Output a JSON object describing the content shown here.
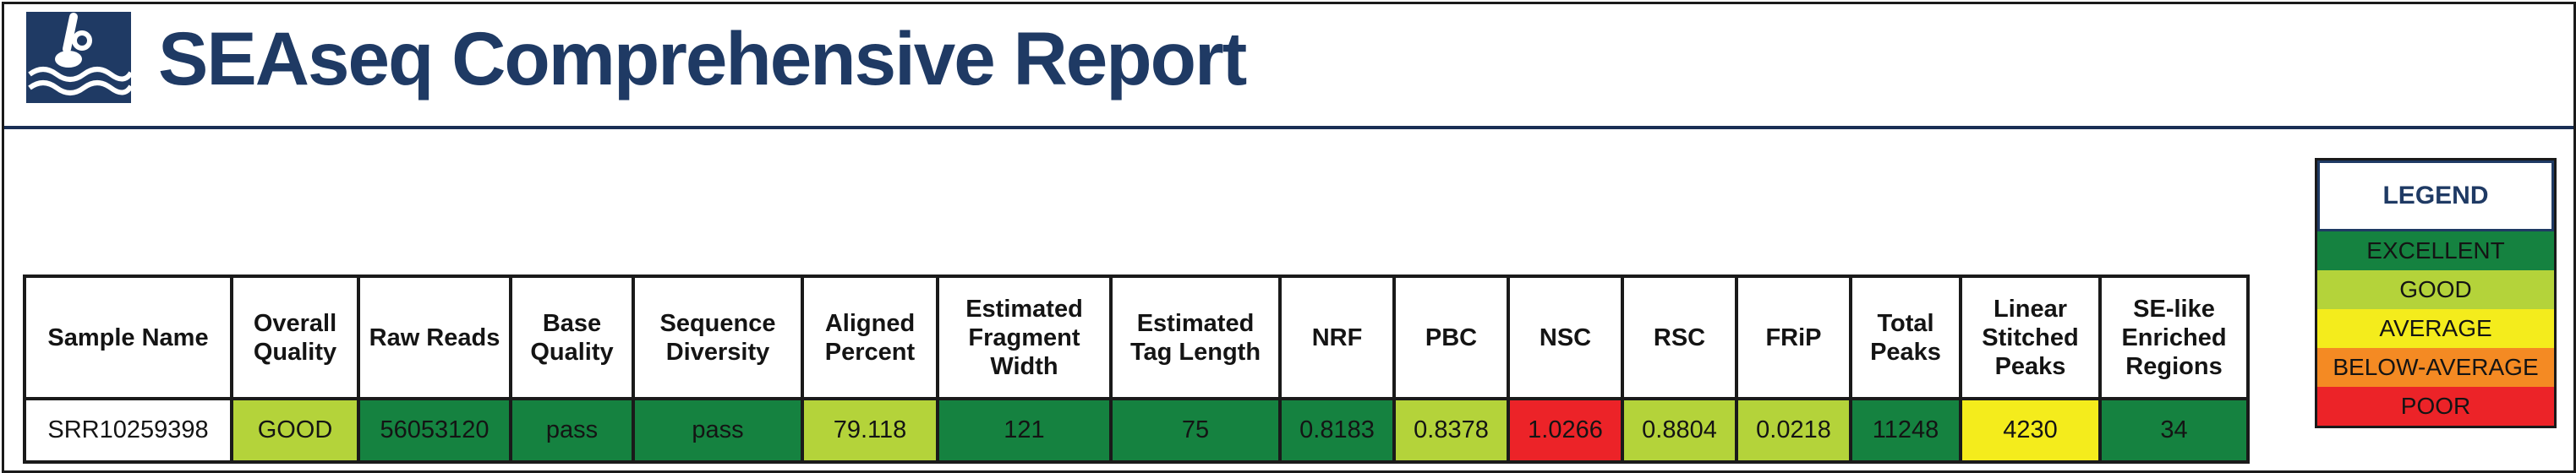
{
  "header": {
    "title": "SEAseq Comprehensive Report",
    "logo_icon": "seaseq-logo-icon",
    "colors": {
      "brand": "#1f3a64"
    }
  },
  "quality_colors": {
    "EXCELLENT": "#158240",
    "GOOD": "#b4d33a",
    "AVERAGE": "#f4ec1c",
    "BELOW-AVERAGE": "#f48a23",
    "POOR": "#ec2328"
  },
  "table": {
    "columns": [
      "Sample Name",
      "Overall Quality",
      "Raw Reads",
      "Base Quality",
      "Sequence Diversity",
      "Aligned Percent",
      "Estimated Fragment Width",
      "Estimated Tag Length",
      "NRF",
      "PBC",
      "NSC",
      "RSC",
      "FRiP",
      "Total Peaks",
      "Linear Stitched Peaks",
      "SE-like Enriched Regions"
    ],
    "row": {
      "sample_name": "SRR10259398",
      "overall_quality": "GOOD",
      "raw_reads": "56053120",
      "base_quality": "pass",
      "sequence_diversity": "pass",
      "aligned_percent": "79.118",
      "fragment_width": "121",
      "tag_length": "75",
      "nrf": "0.8183",
      "pbc": "0.8378",
      "nsc": "1.0266",
      "rsc": "0.8804",
      "frip": "0.0218",
      "total_peaks": "11248",
      "linear_stitched_peaks": "4230",
      "se_like_regions": "34"
    },
    "row_ratings": {
      "overall_quality": "GOOD",
      "raw_reads": "EXCELLENT",
      "base_quality": "EXCELLENT",
      "sequence_diversity": "EXCELLENT",
      "aligned_percent": "GOOD",
      "fragment_width": "EXCELLENT",
      "tag_length": "EXCELLENT",
      "nrf": "EXCELLENT",
      "pbc": "GOOD",
      "nsc": "POOR",
      "rsc": "GOOD",
      "frip": "GOOD",
      "total_peaks": "EXCELLENT",
      "linear_stitched_peaks": "AVERAGE",
      "se_like_regions": "EXCELLENT"
    }
  },
  "legend": {
    "title": "LEGEND",
    "items": [
      "EXCELLENT",
      "GOOD",
      "AVERAGE",
      "BELOW-AVERAGE",
      "POOR"
    ]
  }
}
